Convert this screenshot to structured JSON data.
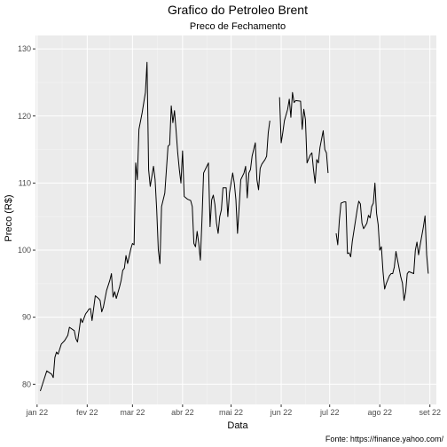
{
  "chart_data": {
    "type": "line",
    "title": "Grafico do Petroleo Brent",
    "subtitle": "Preco de Fechamento",
    "xlabel": "Data",
    "ylabel": "Preco (R$)",
    "caption": "Fonte: https://finance.yahoo.com/",
    "ylim": [
      77,
      132
    ],
    "xlim": [
      "2021-12-31",
      "2022-09-05"
    ],
    "y_ticks": [
      80,
      90,
      100,
      110,
      120,
      130
    ],
    "x_ticks": [
      {
        "date": "2022-01-01",
        "label": "jan 22"
      },
      {
        "date": "2022-02-01",
        "label": "fev 22"
      },
      {
        "date": "2022-03-01",
        "label": "mar 22"
      },
      {
        "date": "2022-04-01",
        "label": "abr 22"
      },
      {
        "date": "2022-05-01",
        "label": "mai 22"
      },
      {
        "date": "2022-06-01",
        "label": "jun 22"
      },
      {
        "date": "2022-07-01",
        "label": "jul 22"
      },
      {
        "date": "2022-08-01",
        "label": "ago 22"
      },
      {
        "date": "2022-09-01",
        "label": "set 22"
      }
    ],
    "grid": true,
    "series": [
      {
        "color": "#000000",
        "segments": [
          [
            [
              "2022-01-03",
              79.0
            ],
            [
              "2022-01-05",
              80.5
            ],
            [
              "2022-01-07",
              82.0
            ],
            [
              "2022-01-10",
              81.5
            ],
            [
              "2022-01-11",
              81.0
            ],
            [
              "2022-01-12",
              84.0
            ],
            [
              "2022-01-13",
              84.8
            ],
            [
              "2022-01-14",
              84.5
            ],
            [
              "2022-01-16",
              86.0
            ],
            [
              "2022-01-18",
              86.5
            ],
            [
              "2022-01-20",
              87.3
            ],
            [
              "2022-01-21",
              88.5
            ],
            [
              "2022-01-24",
              88.0
            ],
            [
              "2022-01-25",
              86.8
            ],
            [
              "2022-01-26",
              86.3
            ],
            [
              "2022-01-27",
              88.0
            ],
            [
              "2022-01-28",
              89.8
            ],
            [
              "2022-01-29",
              89.2
            ],
            [
              "2022-01-31",
              90.5
            ],
            [
              "2022-02-01",
              90.8
            ],
            [
              "2022-02-02",
              91.2
            ],
            [
              "2022-02-03",
              91.3
            ],
            [
              "2022-02-04",
              89.5
            ],
            [
              "2022-02-06",
              93.2
            ],
            [
              "2022-02-08",
              92.8
            ],
            [
              "2022-02-09",
              92.5
            ],
            [
              "2022-02-10",
              90.8
            ],
            [
              "2022-02-11",
              91.5
            ],
            [
              "2022-02-13",
              94.0
            ],
            [
              "2022-02-15",
              95.5
            ],
            [
              "2022-02-16",
              96.5
            ],
            [
              "2022-02-17",
              93.0
            ],
            [
              "2022-02-18",
              93.8
            ],
            [
              "2022-02-19",
              92.8
            ],
            [
              "2022-02-21",
              94.5
            ],
            [
              "2022-02-22",
              95.5
            ],
            [
              "2022-02-23",
              97.0
            ],
            [
              "2022-02-24",
              97.3
            ],
            [
              "2022-02-25",
              99.2
            ],
            [
              "2022-02-26",
              98.0
            ],
            [
              "2022-02-28",
              100.2
            ],
            [
              "2022-03-01",
              101.0
            ],
            [
              "2022-03-02",
              100.8
            ],
            [
              "2022-03-03",
              113.0
            ],
            [
              "2022-03-04",
              110.5
            ],
            [
              "2022-03-05",
              118.0
            ],
            [
              "2022-03-07",
              120.5
            ],
            [
              "2022-03-08",
              122.0
            ],
            [
              "2022-03-09",
              123.5
            ],
            [
              "2022-03-10",
              128.0
            ],
            [
              "2022-03-11",
              112.0
            ],
            [
              "2022-03-12",
              109.5
            ],
            [
              "2022-03-14",
              112.5
            ],
            [
              "2022-03-15",
              110.5
            ],
            [
              "2022-03-16",
              106.0
            ],
            [
              "2022-03-17",
              100.0
            ],
            [
              "2022-03-18",
              98.0
            ],
            [
              "2022-03-19",
              106.5
            ],
            [
              "2022-03-21",
              108.5
            ],
            [
              "2022-03-22",
              112.0
            ],
            [
              "2022-03-23",
              115.5
            ],
            [
              "2022-03-24",
              115.7
            ],
            [
              "2022-03-25",
              121.5
            ],
            [
              "2022-03-26",
              119.0
            ],
            [
              "2022-03-27",
              120.8
            ],
            [
              "2022-03-28",
              117.8
            ],
            [
              "2022-03-29",
              114.5
            ],
            [
              "2022-03-30",
              112.0
            ],
            [
              "2022-03-31",
              110.0
            ],
            [
              "2022-04-01",
              114.8
            ],
            [
              "2022-04-02",
              108.0
            ],
            [
              "2022-04-04",
              107.6
            ],
            [
              "2022-04-06",
              107.4
            ],
            [
              "2022-04-07",
              106.5
            ],
            [
              "2022-04-08",
              101.0
            ],
            [
              "2022-04-09",
              100.5
            ],
            [
              "2022-04-10",
              102.8
            ],
            [
              "2022-04-11",
              101.0
            ],
            [
              "2022-04-12",
              98.5
            ],
            [
              "2022-04-13",
              104.5
            ],
            [
              "2022-04-14",
              111.5
            ],
            [
              "2022-04-16",
              112.5
            ],
            [
              "2022-04-17",
              113.0
            ],
            [
              "2022-04-18",
              103.5
            ],
            [
              "2022-04-19",
              107.5
            ],
            [
              "2022-04-20",
              108.2
            ],
            [
              "2022-04-21",
              106.8
            ],
            [
              "2022-04-22",
              104.0
            ],
            [
              "2022-04-23",
              102.5
            ],
            [
              "2022-04-24",
              105.0
            ],
            [
              "2022-04-25",
              106.0
            ],
            [
              "2022-04-26",
              109.3
            ],
            [
              "2022-04-28",
              109.3
            ],
            [
              "2022-04-29",
              105.0
            ],
            [
              "2022-04-30",
              108.5
            ],
            [
              "2022-05-01",
              110.0
            ],
            [
              "2022-05-02",
              111.5
            ],
            [
              "2022-05-03",
              110.0
            ],
            [
              "2022-05-04",
              107.5
            ],
            [
              "2022-05-05",
              102.5
            ],
            [
              "2022-05-06",
              106.5
            ],
            [
              "2022-05-07",
              110.5
            ],
            [
              "2022-05-09",
              111.5
            ],
            [
              "2022-05-10",
              112.5
            ],
            [
              "2022-05-11",
              107.8
            ],
            [
              "2022-05-12",
              111.5
            ],
            [
              "2022-05-13",
              112.0
            ],
            [
              "2022-05-14",
              114.0
            ],
            [
              "2022-05-16",
              116.0
            ],
            [
              "2022-05-17",
              110.5
            ],
            [
              "2022-05-18",
              109.0
            ],
            [
              "2022-05-19",
              112.2
            ],
            [
              "2022-05-20",
              112.8
            ],
            [
              "2022-05-22",
              113.5
            ],
            [
              "2022-05-23",
              114.0
            ],
            [
              "2022-05-24",
              117.5
            ],
            [
              "2022-05-25",
              119.3
            ]
          ],
          [
            [
              "2022-05-31",
              122.8
            ],
            [
              "2022-06-01",
              116.0
            ],
            [
              "2022-06-02",
              117.5
            ],
            [
              "2022-06-03",
              119.3
            ],
            [
              "2022-06-05",
              121.0
            ],
            [
              "2022-06-06",
              122.5
            ],
            [
              "2022-06-07",
              119.8
            ],
            [
              "2022-06-08",
              123.5
            ],
            [
              "2022-06-09",
              122.0
            ],
            [
              "2022-06-10",
              122.3
            ],
            [
              "2022-06-13",
              122.2
            ],
            [
              "2022-06-14",
              118.0
            ],
            [
              "2022-06-15",
              121.0
            ],
            [
              "2022-06-16",
              119.5
            ],
            [
              "2022-06-17",
              113.0
            ],
            [
              "2022-06-19",
              114.2
            ],
            [
              "2022-06-20",
              114.5
            ],
            [
              "2022-06-21",
              112.0
            ],
            [
              "2022-06-22",
              110.0
            ],
            [
              "2022-06-23",
              113.5
            ],
            [
              "2022-06-24",
              113.0
            ],
            [
              "2022-06-25",
              115.3
            ],
            [
              "2022-06-27",
              117.8
            ],
            [
              "2022-06-28",
              115.0
            ],
            [
              "2022-06-29",
              114.5
            ],
            [
              "2022-06-30",
              111.5
            ]
          ],
          [
            [
              "2022-07-05",
              102.5
            ],
            [
              "2022-07-06",
              100.8
            ],
            [
              "2022-07-07",
              104.5
            ],
            [
              "2022-07-08",
              107.0
            ],
            [
              "2022-07-10",
              107.2
            ],
            [
              "2022-07-11",
              107.2
            ],
            [
              "2022-07-12",
              99.5
            ],
            [
              "2022-07-13",
              99.6
            ],
            [
              "2022-07-14",
              99.0
            ],
            [
              "2022-07-15",
              101.3
            ],
            [
              "2022-07-18",
              106.0
            ],
            [
              "2022-07-19",
              107.3
            ],
            [
              "2022-07-20",
              106.9
            ],
            [
              "2022-07-21",
              104.0
            ],
            [
              "2022-07-22",
              103.2
            ],
            [
              "2022-07-24",
              104.0
            ],
            [
              "2022-07-25",
              105.2
            ],
            [
              "2022-07-26",
              104.8
            ],
            [
              "2022-07-27",
              106.5
            ],
            [
              "2022-07-28",
              107.0
            ],
            [
              "2022-07-29",
              110.0
            ],
            [
              "2022-07-30",
              105.5
            ],
            [
              "2022-07-31",
              103.8
            ],
            [
              "2022-08-01",
              100.0
            ],
            [
              "2022-08-02",
              100.5
            ],
            [
              "2022-08-03",
              96.8
            ],
            [
              "2022-08-04",
              94.2
            ],
            [
              "2022-08-05",
              95.0
            ],
            [
              "2022-08-07",
              96.2
            ],
            [
              "2022-08-08",
              96.5
            ],
            [
              "2022-08-09",
              96.5
            ],
            [
              "2022-08-10",
              97.5
            ],
            [
              "2022-08-11",
              99.8
            ],
            [
              "2022-08-12",
              98.5
            ],
            [
              "2022-08-14",
              96.0
            ],
            [
              "2022-08-15",
              95.1
            ],
            [
              "2022-08-16",
              92.5
            ],
            [
              "2022-08-17",
              93.8
            ],
            [
              "2022-08-18",
              96.5
            ],
            [
              "2022-08-19",
              96.8
            ],
            [
              "2022-08-22",
              96.5
            ],
            [
              "2022-08-23",
              100.0
            ],
            [
              "2022-08-24",
              101.2
            ],
            [
              "2022-08-25",
              99.3
            ],
            [
              "2022-08-26",
              100.8
            ],
            [
              "2022-08-28",
              103.5
            ],
            [
              "2022-08-29",
              105.1
            ],
            [
              "2022-08-30",
              99.3
            ],
            [
              "2022-08-31",
              96.5
            ]
          ]
        ]
      }
    ]
  }
}
